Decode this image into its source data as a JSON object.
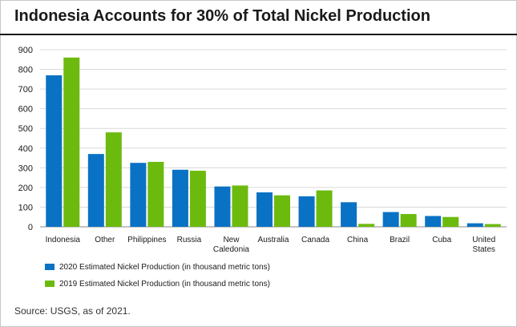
{
  "header": {
    "title": "Indonesia Accounts for 30% of Total Nickel Production"
  },
  "chart_data": {
    "type": "bar",
    "title": "Indonesia Accounts for 30% of Total Nickel Production",
    "categories": [
      [
        "Indonesia"
      ],
      [
        "Other"
      ],
      [
        "Philippines"
      ],
      [
        "Russia"
      ],
      [
        "New",
        "Caledonia"
      ],
      [
        "Australia"
      ],
      [
        "Canada"
      ],
      [
        "China"
      ],
      [
        "Brazil"
      ],
      [
        "Cuba"
      ],
      [
        "United",
        "States"
      ]
    ],
    "series": [
      {
        "name": "2020 Estimated Nickel Production (in thousand metric tons)",
        "color": "#0a72c4",
        "values": [
          770,
          370,
          325,
          290,
          205,
          175,
          155,
          125,
          75,
          55,
          18
        ]
      },
      {
        "name": "2019 Estimated Nickel Production (in thousand metric tons)",
        "color": "#6dba0f",
        "values": [
          860,
          480,
          330,
          285,
          210,
          160,
          185,
          15,
          65,
          50,
          14
        ]
      }
    ],
    "ylim": [
      0,
      900
    ],
    "yticks": [
      0,
      100,
      200,
      300,
      400,
      500,
      600,
      700,
      800,
      900
    ],
    "grid": true,
    "legend_position": "bottom-left"
  },
  "footer": {
    "source": "Source: USGS, as of 2021."
  }
}
